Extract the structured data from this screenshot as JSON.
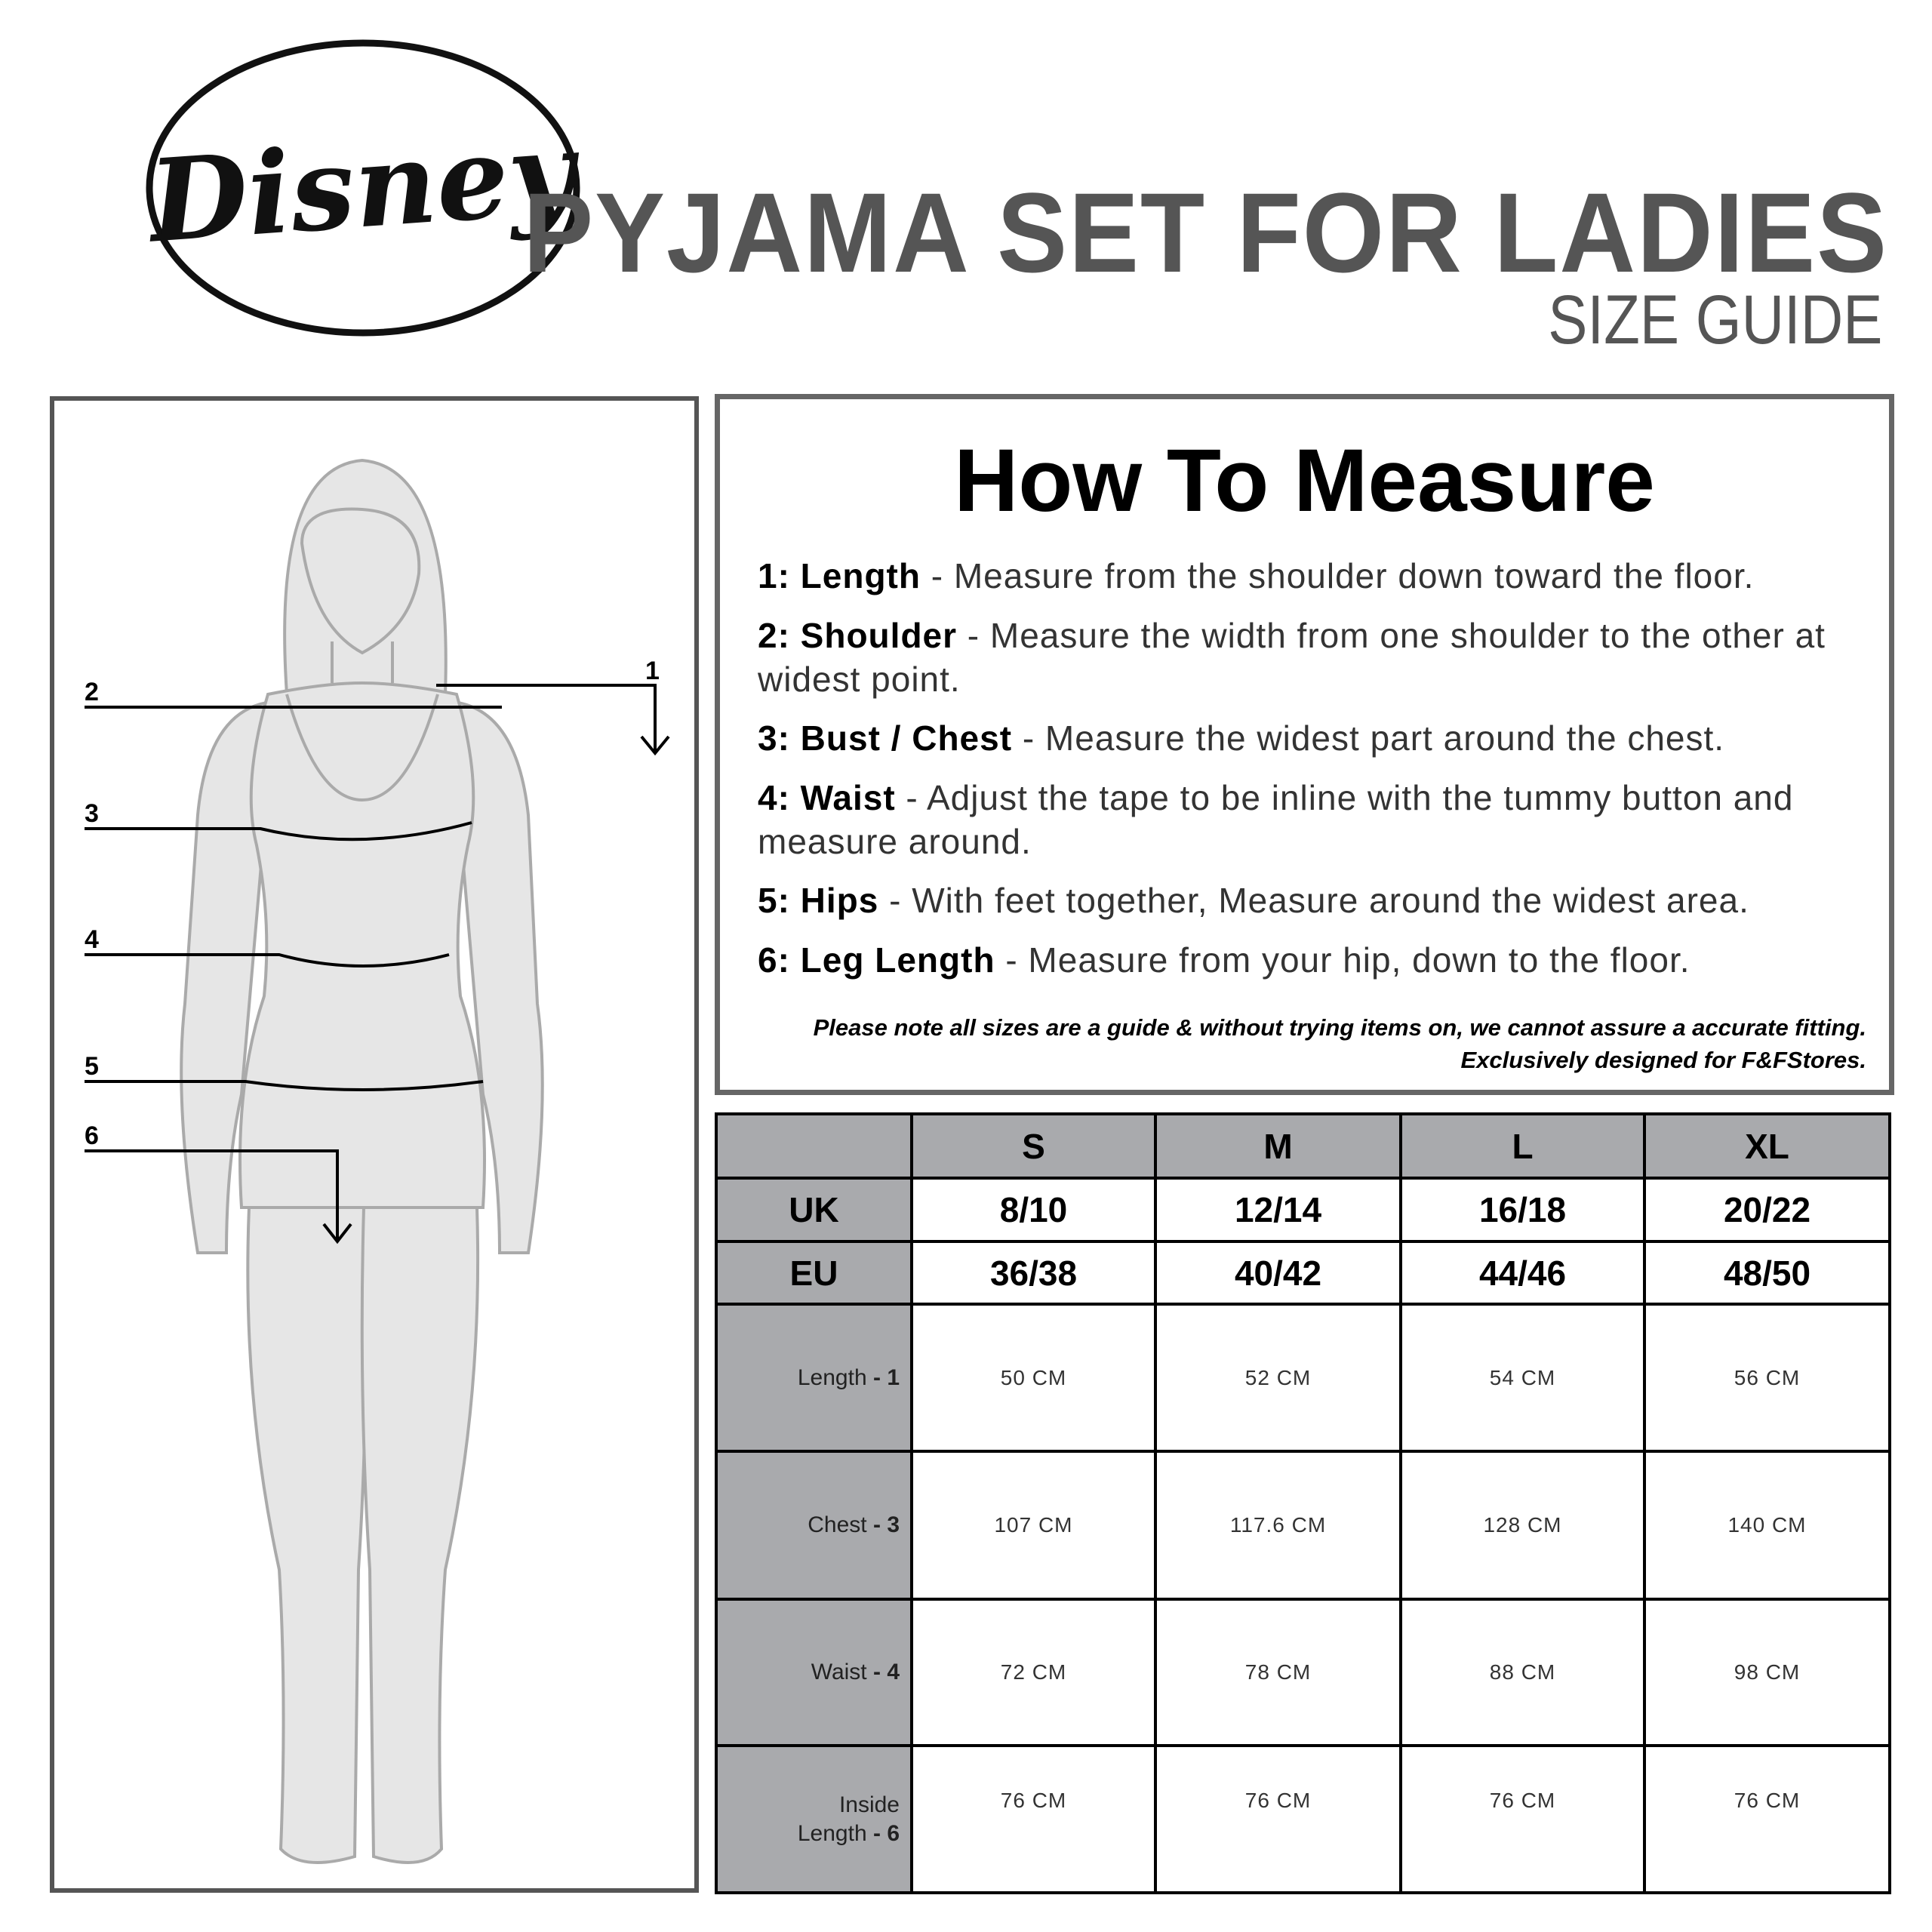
{
  "logo": {
    "text": "Disney"
  },
  "header": {
    "title": "PYJAMA SET FOR LADIES",
    "subtitle": "SIZE GUIDE"
  },
  "figure": {
    "labels": [
      "1",
      "2",
      "3",
      "4",
      "5",
      "6"
    ]
  },
  "how_to_measure": {
    "title": "How To Measure",
    "items": [
      {
        "term": "1: Length",
        "desc": " - Measure from the shoulder down toward the floor."
      },
      {
        "term": "2: Shoulder",
        "desc": "  - Measure the width from one shoulder to the other at widest point."
      },
      {
        "term": "3: Bust / Chest",
        "desc": " - Measure the widest part around the chest."
      },
      {
        "term": "4: Waist",
        "desc": " - Adjust the tape to be inline with the tummy button and measure around."
      },
      {
        "term": "5: Hips",
        "desc": " - With feet together, Measure around the widest area."
      },
      {
        "term": "6: Leg Length",
        "desc": " - Measure from your hip, down to the floor."
      }
    ],
    "note1": "Please note all sizes are a guide & without trying items on, we cannot assure a accurate fitting.",
    "note2": "Exclusively designed for F&FStores."
  },
  "table": {
    "sizes": [
      "S",
      "M",
      "L",
      "XL"
    ],
    "uk": {
      "label": "UK",
      "values": [
        "8/10",
        "12/14",
        "16/18",
        "20/22"
      ]
    },
    "eu": {
      "label": "EU",
      "values": [
        "36/38",
        "40/42",
        "44/46",
        "48/50"
      ]
    },
    "rows": [
      {
        "label": "Length",
        "num": "1",
        "values": [
          "50 CM",
          "52 CM",
          "54 CM",
          "56 CM"
        ]
      },
      {
        "label": "Chest",
        "num": "3",
        "values": [
          "107 CM",
          "117.6 CM",
          "128 CM",
          "140 CM"
        ]
      },
      {
        "label": "Waist",
        "num": "4",
        "values": [
          "72 CM",
          "78 CM",
          "88 CM",
          "98 CM"
        ]
      },
      {
        "label": "Inside Length",
        "num": "6",
        "values": [
          "76 CM",
          "76 CM",
          "76 CM",
          "76 CM"
        ]
      }
    ]
  },
  "colors": {
    "header_grey": "#555555",
    "cell_grey": "#a9aaad",
    "body_fill": "#e6e6e6"
  }
}
